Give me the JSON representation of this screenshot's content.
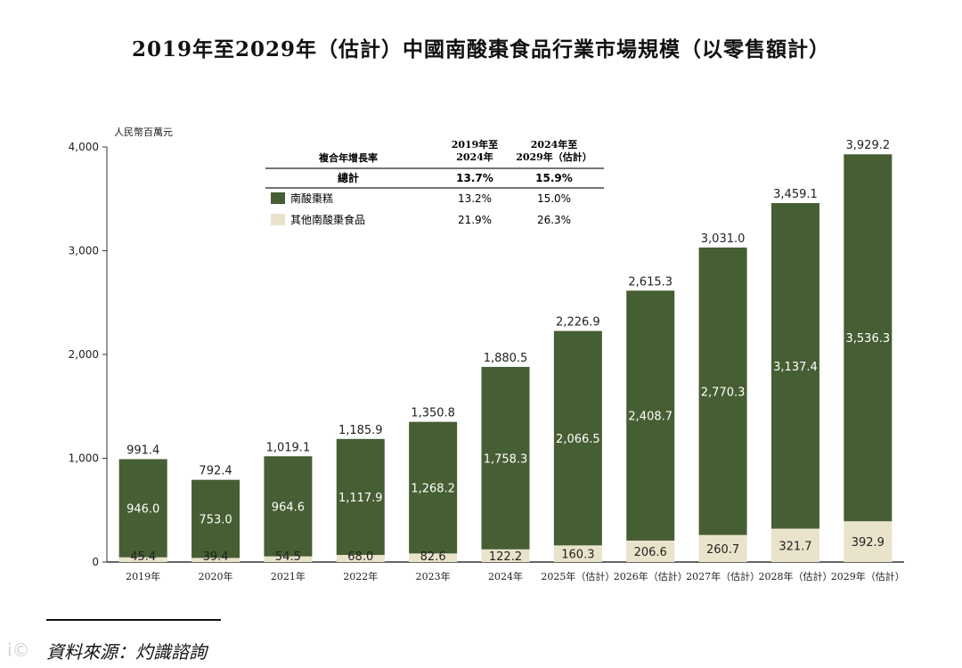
{
  "title": "2019年至2029年（估計）中國南酸棗食品行業市場規模（以零售額計）",
  "source": "資料來源：灼識諮詢",
  "watermark": "i©",
  "colors": {
    "dark": "#465e33",
    "light": "#eae3cb",
    "axis": "#333333"
  },
  "cagr_table": {
    "header_label": "複合年增長率",
    "period1": [
      "2019年至",
      "2024年"
    ],
    "period2": [
      "2024年至",
      "2029年（估計）"
    ],
    "rows": [
      {
        "label": "總計",
        "v1": "13.7%",
        "v2": "15.9%",
        "bold": true,
        "swatch": ""
      },
      {
        "label": "南酸棗糕",
        "v1": "13.2%",
        "v2": "15.0%",
        "bold": false,
        "swatch": "dark"
      },
      {
        "label": "其他南酸棗食品",
        "v1": "21.9%",
        "v2": "26.3%",
        "bold": false,
        "swatch": "light"
      }
    ]
  },
  "chart_data": {
    "type": "bar",
    "stacked": true,
    "title": "2019年至2029年（估計）中國南酸棗食品行業市場規模（以零售額計）",
    "ylabel": "人民幣百萬元",
    "ylim": [
      0,
      4000
    ],
    "yticks": [
      0,
      1000,
      2000,
      3000,
      4000
    ],
    "ytick_labels": [
      "0",
      "1,000",
      "2,000",
      "3,000",
      "4,000"
    ],
    "categories": [
      "2019年",
      "2020年",
      "2021年",
      "2022年",
      "2023年",
      "2024年",
      "2025年（估計）",
      "2026年（估計）",
      "2027年（估計）",
      "2028年（估計）",
      "2029年（估計）"
    ],
    "series": [
      {
        "name": "其他南酸棗食品",
        "color": "light",
        "values": [
          45.4,
          39.4,
          54.5,
          68.0,
          82.6,
          122.2,
          160.3,
          206.6,
          260.7,
          321.7,
          392.9
        ],
        "labels": [
          "45.4",
          "39.4",
          "54.5",
          "68.0",
          "82.6",
          "122.2",
          "160.3",
          "206.6",
          "260.7",
          "321.7",
          "392.9"
        ]
      },
      {
        "name": "南酸棗糕",
        "color": "dark",
        "values": [
          946.0,
          753.0,
          964.6,
          1117.9,
          1268.2,
          1758.3,
          2066.5,
          2408.7,
          2770.3,
          3137.4,
          3536.3
        ],
        "labels": [
          "946.0",
          "753.0",
          "964.6",
          "1,117.9",
          "1,268.2",
          "1,758.3",
          "2,066.5",
          "2,408.7",
          "2,770.3",
          "3,137.4",
          "3,536.3"
        ]
      }
    ],
    "totals": [
      991.4,
      792.4,
      1019.1,
      1185.9,
      1350.8,
      1880.5,
      2226.9,
      2615.3,
      3031.0,
      3459.1,
      3929.2
    ],
    "total_labels": [
      "991.4",
      "792.4",
      "1,019.1",
      "1,185.9",
      "1,350.8",
      "1,880.5",
      "2,226.9",
      "2,615.3",
      "3,031.0",
      "3,459.1",
      "3,929.2"
    ]
  }
}
